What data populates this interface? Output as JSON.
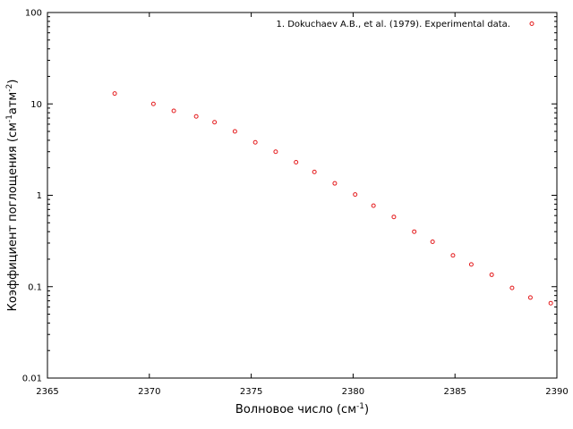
{
  "chart_data": {
    "type": "scatter",
    "xlabel": {
      "main": "Волновое число (см",
      "sup": "-1",
      "tail": ")"
    },
    "ylabel": {
      "a": "Коэффициент поглощения (см",
      "sup1": "-1",
      "b": "атм",
      "sup2": "-2",
      "c": ")"
    },
    "xlim": [
      2365,
      2390
    ],
    "ylim": [
      0.01,
      100
    ],
    "yscale": "log",
    "grid": false,
    "legend_position": "top-right",
    "x_ticks": [
      2365,
      2370,
      2375,
      2380,
      2385,
      2390
    ],
    "x_tick_labels": [
      "2365",
      "2370",
      "2375",
      "2380",
      "2385",
      "2390"
    ],
    "y_ticks": [
      0.01,
      0.1,
      1,
      10,
      100
    ],
    "y_tick_labels": [
      "0.01",
      "0.1",
      "1",
      "10",
      "100"
    ],
    "series": [
      {
        "name": "1. Dokuchaev A.B., et al. (1979). Experimental data.",
        "color": "#e41a1c",
        "marker": "open-circle",
        "x": [
          2368.3,
          2370.2,
          2371.2,
          2372.3,
          2373.2,
          2374.2,
          2375.2,
          2376.2,
          2377.2,
          2378.1,
          2379.1,
          2380.1,
          2381.0,
          2382.0,
          2383.0,
          2383.9,
          2384.9,
          2385.8,
          2386.8,
          2387.8,
          2388.7,
          2389.7
        ],
        "y": [
          13.0,
          10.0,
          8.4,
          7.3,
          6.3,
          5.0,
          3.8,
          3.0,
          2.3,
          1.8,
          1.35,
          1.02,
          0.77,
          0.58,
          0.4,
          0.31,
          0.22,
          0.175,
          0.135,
          0.097,
          0.076,
          0.066
        ]
      }
    ]
  }
}
